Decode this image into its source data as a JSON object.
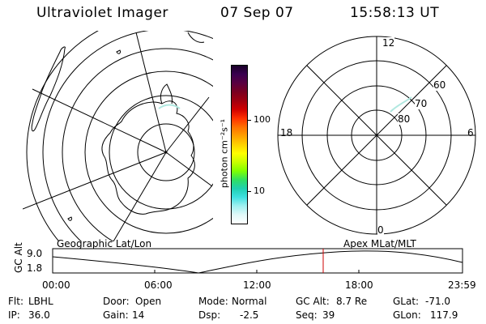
{
  "header": {
    "instrument": "Ultraviolet Imager",
    "date": "07 Sep 07",
    "time": "15:58:13 UT"
  },
  "colorbar": {
    "unit_label": "photon cm⁻²s⁻¹",
    "ticks": [
      "100",
      "10"
    ],
    "colors": [
      "#1a0028",
      "#3a0050",
      "#5a0040",
      "#7a0020",
      "#a00010",
      "#d00000",
      "#ff3000",
      "#ff7000",
      "#ffa000",
      "#ffd000",
      "#ffff00",
      "#c8ff00",
      "#80ff00",
      "#30e060",
      "#20d0b0",
      "#40e0e0",
      "#a0f0f0",
      "#e0f8f8",
      "#ffffff"
    ]
  },
  "polar_plot": {
    "mlt_labels": {
      "top": "12",
      "left": "18",
      "right": "6",
      "bottom": "0"
    },
    "lat_labels": [
      "60",
      "70",
      "80"
    ]
  },
  "timeline": {
    "left_label": "Geographic Lat/Lon",
    "right_label": "Apex MLat/MLT",
    "axis_title": "GC Alt",
    "y_ticks": [
      "9.0",
      "1.8"
    ],
    "x_ticks": [
      "00:00",
      "06:00",
      "12:00",
      "18:00",
      "23:59"
    ],
    "marker_color": "#cc0000"
  },
  "status": {
    "row1": [
      {
        "key": "Flt:",
        "value": "LBHL"
      },
      {
        "key": "Door:",
        "value": "Open"
      },
      {
        "key": "Mode:",
        "value": "Normal"
      },
      {
        "key": "GC Alt:",
        "value": "8.7 Re"
      },
      {
        "key": "GLat:",
        "value": "-71.0"
      }
    ],
    "row2": [
      {
        "key": "IP:",
        "value": "36.0"
      },
      {
        "key": "Gain:",
        "value": "14"
      },
      {
        "key": "Dsp:",
        "value": "-2.5"
      },
      {
        "key": "Seq:",
        "value": "39"
      },
      {
        "key": "GLon:",
        "value": "117.9"
      }
    ]
  }
}
